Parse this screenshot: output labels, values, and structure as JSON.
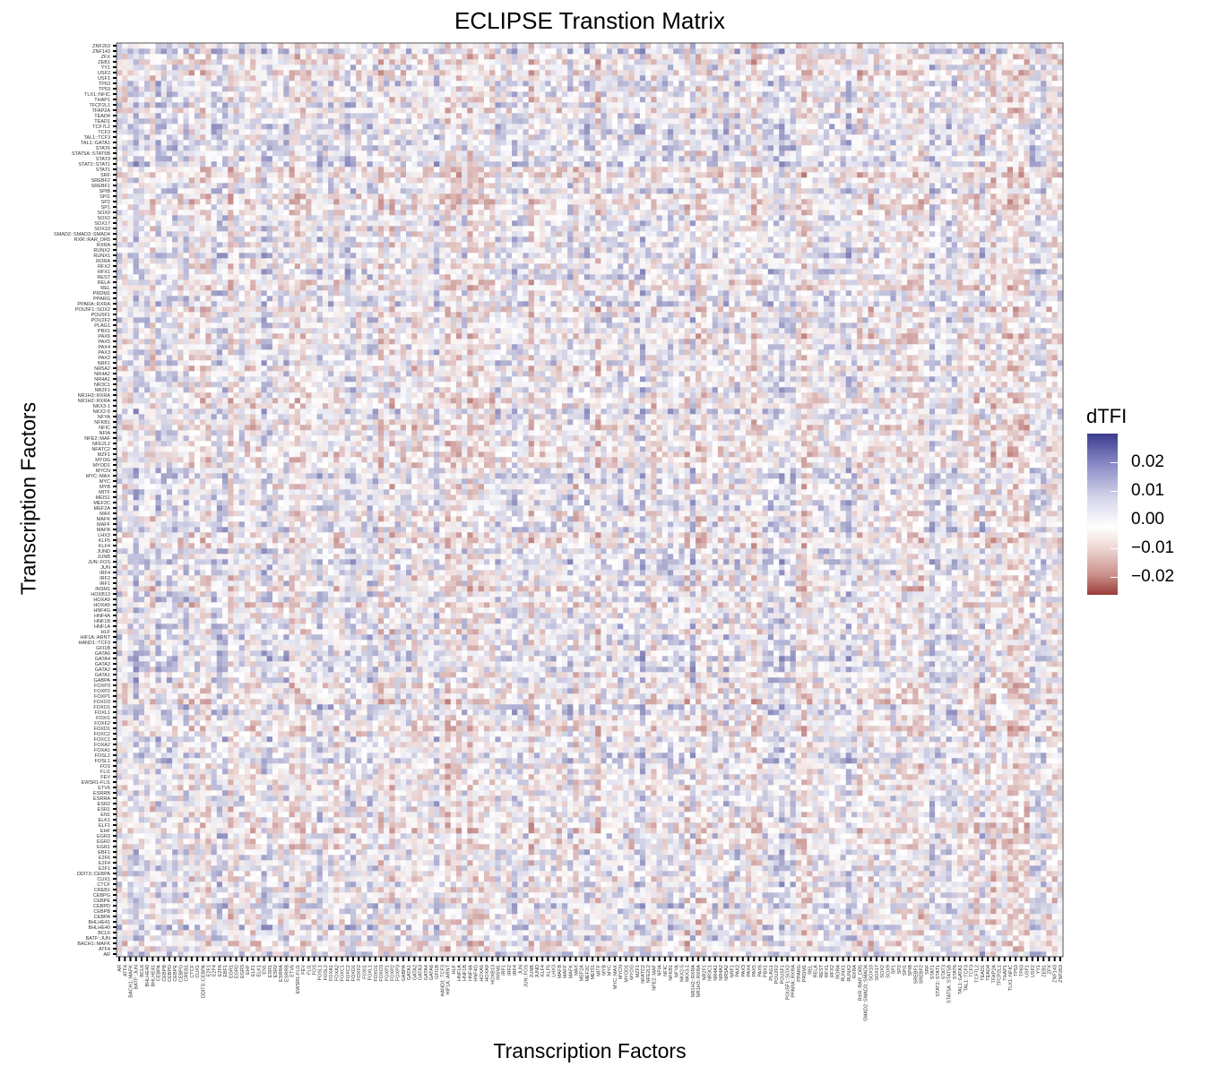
{
  "chart_data": {
    "type": "heatmap",
    "title": "ECLIPSE Transtion Matrix",
    "xlabel": "Transcription Factors",
    "ylabel": "Transcription Factors",
    "legend": {
      "title": "dTFI",
      "placement": "right",
      "ticks": [
        "0.02",
        "0.01",
        "0.00",
        "−0.01",
        "−0.02"
      ],
      "tick_values": [
        0.02,
        0.01,
        0.0,
        -0.01,
        -0.02
      ],
      "range": [
        -0.026,
        0.026
      ]
    },
    "colors": {
      "high": "#3b3b8f",
      "mid": "#ffffff",
      "low": "#9b3b37"
    },
    "x_tick_labels_sample": [
      "AR",
      "ATF4",
      "BACH1::MAFK",
      "BATF::JUN",
      "BCL6",
      "BHLHE40",
      "BHLHE41",
      "CEBPA",
      "CEBPB",
      "CEBPD",
      "CEBPE",
      "CEBPG",
      "CREB1",
      "CTCF",
      "CUX1",
      "DDIT3::CEBPA",
      "E2F1",
      "E2F4",
      "E2F6",
      "EBF1",
      "EGR1",
      "EGR2",
      "EGR3",
      "EHF",
      "ELF1",
      "ELK1",
      "EN1",
      "ESR1",
      "ESR2",
      "ESRRA",
      "ESRRB",
      "ETV6",
      "EWSR1-FLI1",
      "FEV",
      "FLI1",
      "FOS",
      "FOSL1",
      "FOSL2",
      "FOXA1",
      "FOXA2",
      "FOXC1",
      "FOXC2",
      "FOXD1",
      "FOXF2",
      "FOXI1",
      "FOXL1",
      "FOXO1",
      "FOXO3",
      "FOXP1",
      "FOXP2",
      "FOXP3",
      "GABPA",
      "GATA1",
      "GATA2",
      "GATA3",
      "GATA4",
      "GATA6",
      "GFI1B",
      "HAND1::TCF3",
      "HIF1A::ARNT",
      "HLF",
      "HNF1A",
      "HNF1B",
      "HNF4A",
      "HNF4G",
      "HOXA5",
      "HOXA9",
      "HOXB13",
      "INSM1",
      "IRF1",
      "IRF2",
      "IRF4",
      "JUN",
      "JUN::FOS",
      "JUNB",
      "JUND",
      "KLF4",
      "KLF5",
      "LHX3",
      "MAFB",
      "MAFF",
      "MAFK",
      "MAX",
      "MEF2A",
      "MEF2C",
      "MEIS1",
      "MITF",
      "MYB",
      "MYC",
      "MYC::MAX",
      "MYCN",
      "MYOD1",
      "MYOG",
      "MZF1",
      "NFATC2",
      "NFE2L2",
      "NFE2::MAF",
      "NFIA",
      "NFIC",
      "NFKB1",
      "NFYA",
      "NKX2-5",
      "NKX3-1",
      "NR1H2::RXRA",
      "NR1H3::RXRA",
      "NR2F1",
      "NR3C1",
      "NR4A1",
      "NR4A2",
      "NR5A2",
      "NRF1",
      "PAX2",
      "PAX3",
      "PAX4",
      "PAX5",
      "PAX6",
      "PBX1",
      "PLAG1",
      "POU2F2",
      "POU5F1",
      "POU5F1::SOX2",
      "PPARA::RXRA",
      "PPARG",
      "PRDM1",
      "REL",
      "RELA",
      "REST",
      "RFX1",
      "RFX2",
      "RORA",
      "RUNX1",
      "RUNX2",
      "RXRA",
      "RXR::RAR_DR5",
      "SMAD2::SMAD3::SMAD4",
      "SOX10",
      "SOX17",
      "SOX2",
      "SOX9",
      "SP1",
      "SP2",
      "SPI1",
      "SPIB",
      "SREBF1",
      "SREBF2",
      "SRF",
      "STAT1",
      "STAT2::STAT1",
      "STAT3",
      "STAT5A::STAT5B",
      "STAT6",
      "TAL1::GATA1",
      "TAL1::TCF3",
      "TCF3",
      "TCF7L2",
      "TEAD1",
      "TEAD4",
      "TFAP2A",
      "TFCP2L1",
      "THAP1",
      "TLX1::NFIC",
      "TP53",
      "TP63",
      "USF1",
      "USF2",
      "YY1",
      "ZEB1",
      "ZFX",
      "ZNF143",
      "ZNF263"
    ],
    "y_tick_labels_sample": [
      "AR",
      "ATF4",
      "BACH1::MAFK",
      "BATF::JUN",
      "BCL6",
      "BHLHE40",
      "BHLHE41",
      "CEBPA",
      "CEBPB",
      "CEBPD",
      "CEBPE",
      "CEBPG",
      "CREB1",
      "CTCF",
      "CUX1",
      "DDIT3::CEBPA",
      "E2F1",
      "E2F4",
      "E2F6",
      "EBF1",
      "EGR1",
      "EGR2",
      "EGR3",
      "EHF",
      "ELF1",
      "ELK1",
      "EN1",
      "ESR1",
      "ESR2",
      "ESRRA",
      "ESRRB",
      "ETV6",
      "EWSR1-FLI1",
      "FEV",
      "FLI1",
      "FOS",
      "FOSL1",
      "FOSL2",
      "FOXA1",
      "FOXA2",
      "FOXC1",
      "FOXC2",
      "FOXD1",
      "FOXF2",
      "FOXI1",
      "FOXL1",
      "FOXO1",
      "FOXO3",
      "FOXP1",
      "FOXP2",
      "FOXP3",
      "GABPA",
      "GATA1",
      "GATA2",
      "GATA3",
      "GATA4",
      "GATA6",
      "GFI1B",
      "HAND1::TCF3",
      "HIF1A::ARNT",
      "HLF",
      "HNF1A",
      "HNF1B",
      "HNF4A",
      "HNF4G",
      "HOXA5",
      "HOXA9",
      "HOXB13",
      "INSM1",
      "IRF1",
      "IRF2",
      "IRF4",
      "JUN",
      "JUN::FOS",
      "JUNB",
      "JUND",
      "KLF4",
      "KLF5",
      "LHX3",
      "MAFB",
      "MAFF",
      "MAFK",
      "MAX",
      "MEF2A",
      "MEF2C",
      "MEIS1",
      "MITF",
      "MYB",
      "MYC",
      "MYC::MAX",
      "MYCN",
      "MYOD1",
      "MYOG",
      "MZF1",
      "NFATC2",
      "NFE2L2",
      "NFE2::MAF",
      "NFIA",
      "NFIC",
      "NFKB1",
      "NFYA",
      "NKX2-5",
      "NKX3-1",
      "NR1H2::RXRA",
      "NR1H3::RXRA",
      "NR2F1",
      "NR3C1",
      "NR4A1",
      "NR4A2",
      "NR5A2",
      "NRF1",
      "PAX2",
      "PAX3",
      "PAX4",
      "PAX5",
      "PAX6",
      "PBX1",
      "PLAG1",
      "POU2F2",
      "POU5F1",
      "POU5F1::SOX2",
      "PPARA::RXRA",
      "PPARG",
      "PRDM1",
      "REL",
      "RELA",
      "REST",
      "RFX1",
      "RFX2",
      "RORA",
      "RUNX1",
      "RUNX2",
      "RXRA",
      "RXR::RAR_DR5",
      "SMAD2::SMAD3::SMAD4",
      "SOX10",
      "SOX17",
      "SOX2",
      "SOX9",
      "SP1",
      "SP2",
      "SPI1",
      "SPIB",
      "SREBF1",
      "SREBF2",
      "SRF",
      "STAT1",
      "STAT2::STAT1",
      "STAT3",
      "STAT5A::STAT5B",
      "STAT6",
      "TAL1::GATA1",
      "TAL1::TCF3",
      "TCF3",
      "TCF7L2",
      "TEAD1",
      "TEAD4",
      "TFAP2A",
      "TFCP2L1",
      "THAP1",
      "TLX1::NFIC",
      "TP53",
      "TP63",
      "USF1",
      "USF2",
      "YY1",
      "ZEB1",
      "ZFX",
      "ZNF143",
      "ZNF263"
    ],
    "matrix_note": "",
    "grid": false
  }
}
